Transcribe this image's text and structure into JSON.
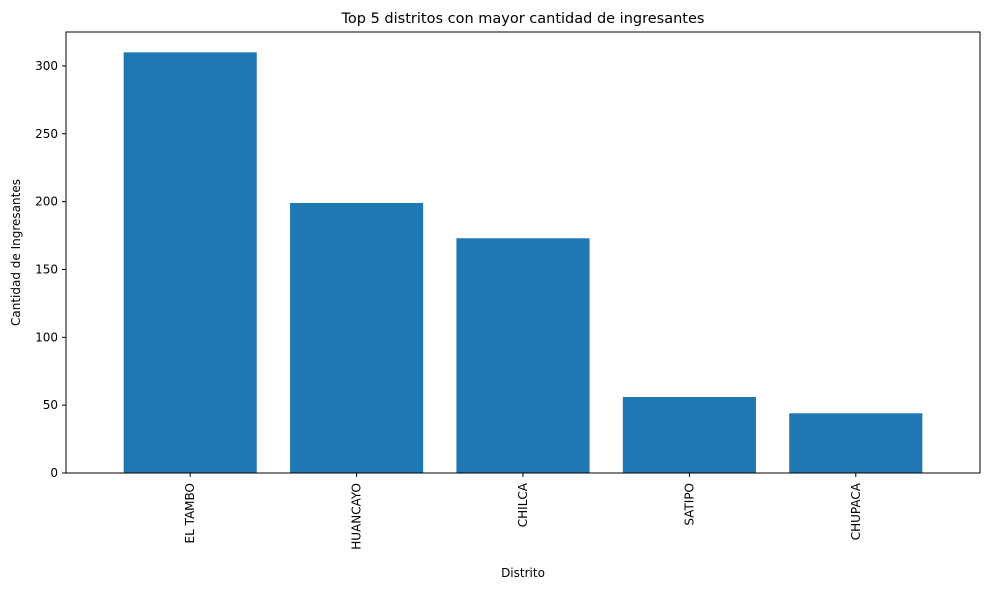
{
  "chart_data": {
    "type": "bar",
    "title": "Top 5 distritos con mayor cantidad de ingresantes",
    "xlabel": "Distrito",
    "ylabel": "Cantidad de Ingresantes",
    "categories": [
      "EL TAMBO",
      "HUANCAYO",
      "CHILCA",
      "SATIPO",
      "CHUPACA"
    ],
    "values": [
      310,
      199,
      173,
      56,
      44
    ],
    "ylim": [
      0,
      325
    ],
    "yticks": [
      "0",
      "50",
      "100",
      "150",
      "200",
      "250",
      "300"
    ],
    "bar_color": "#1f77b4",
    "grid": false,
    "legend": "none"
  }
}
